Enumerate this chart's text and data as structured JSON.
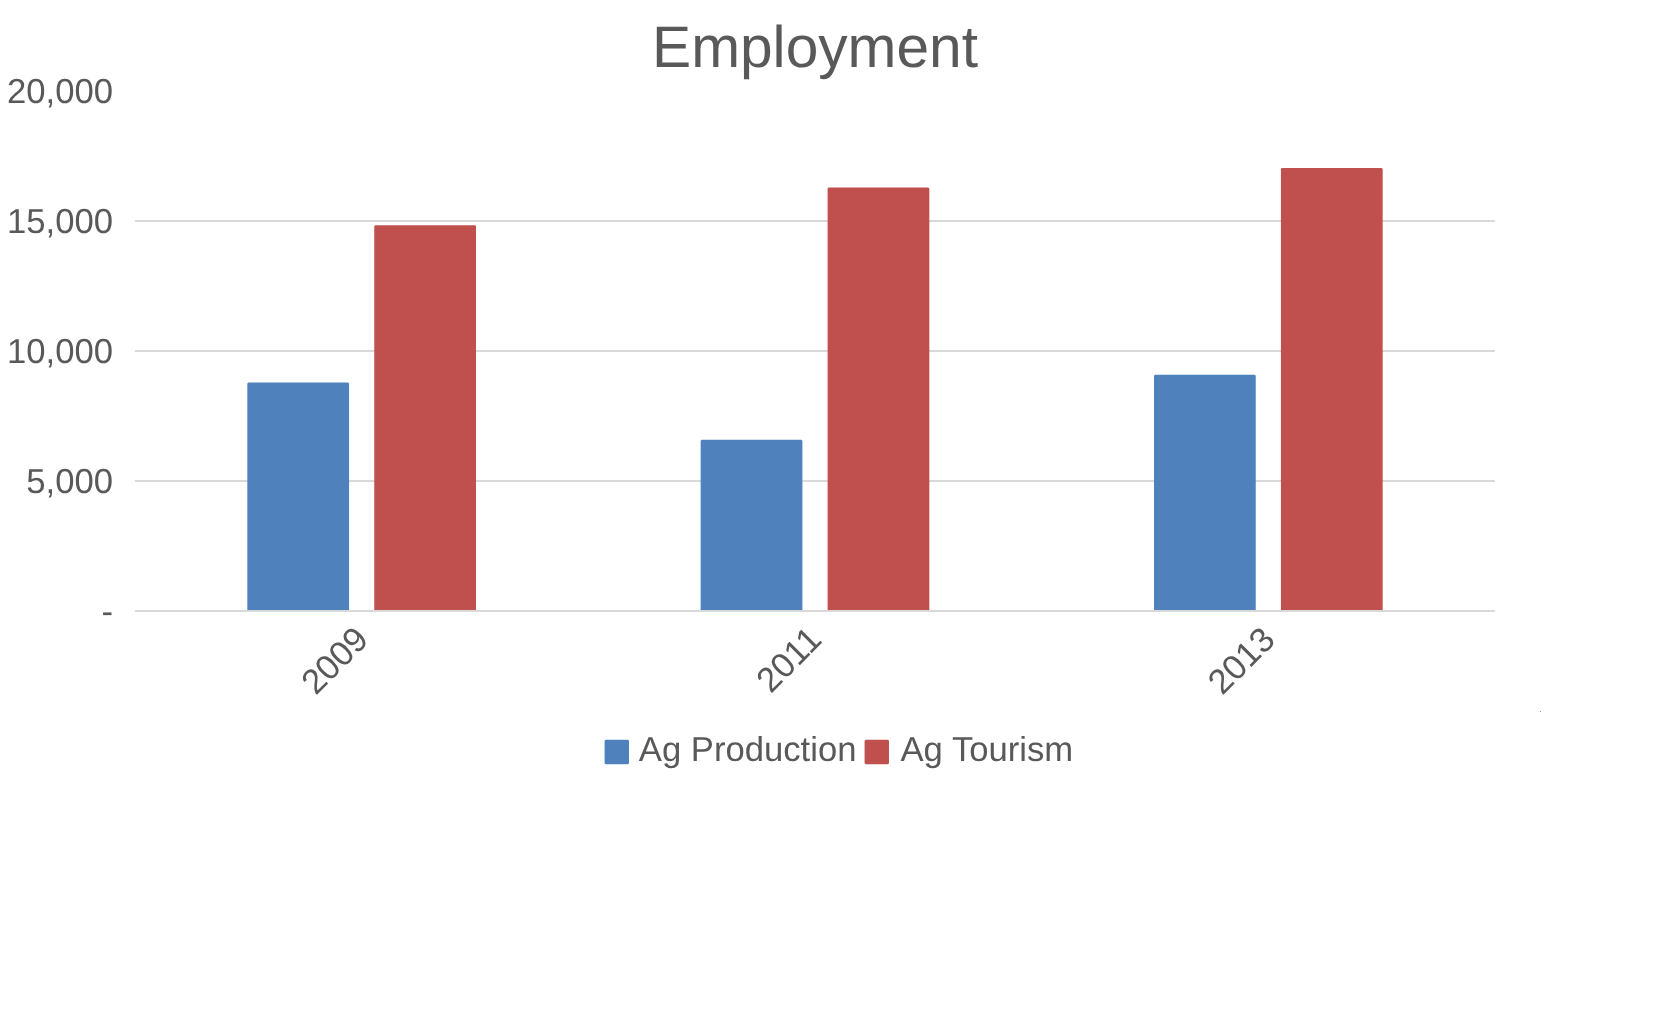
{
  "chart_data": {
    "type": "bar",
    "title": "Employment",
    "categories": [
      "2009",
      "2011",
      "2013"
    ],
    "series": [
      {
        "name": "Ag Production",
        "color": "#4f81bd",
        "values": [
          8750,
          6550,
          9050
        ]
      },
      {
        "name": "Ag Tourism",
        "color": "#c0504d",
        "values": [
          14800,
          16250,
          17000
        ]
      }
    ],
    "ylim": [
      0,
      20000
    ],
    "yticks": [
      {
        "value": 0,
        "label": "-"
      },
      {
        "value": 5000,
        "label": "5,000"
      },
      {
        "value": 10000,
        "label": "10,000"
      },
      {
        "value": 15000,
        "label": "15,000"
      },
      {
        "value": 20000,
        "label": "20,000"
      }
    ],
    "grid": "y",
    "legend": "bottom"
  }
}
